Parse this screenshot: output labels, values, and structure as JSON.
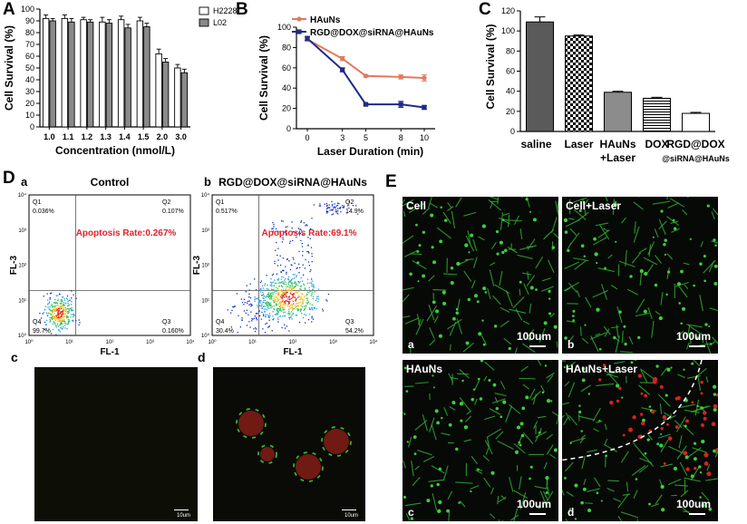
{
  "panel_letters": {
    "A": "A",
    "B": "B",
    "C": "C",
    "D": "D",
    "E": "E"
  },
  "colors": {
    "h2228": "#ffffff",
    "l02": "#8a8a8a",
    "hauns": "#e07a5f",
    "rgd": "#1f2a8a",
    "c_saline": "#5a5a5a",
    "c_laser": "checker",
    "c_hauns": "#8c8c8c",
    "c_dox": "hstripe",
    "c_rgd": "#ffffff",
    "apoptosis_text": "#e0232a",
    "micro_bg": "#070907"
  },
  "chart_data": [
    {
      "id": "A",
      "type": "bar",
      "categories": [
        "1.0",
        "1.1",
        "1.2",
        "1.3",
        "1.4",
        "1.5",
        "2.0",
        "3.0"
      ],
      "series": [
        {
          "name": "H2228",
          "values": [
            92,
            92,
            91,
            89,
            91,
            90,
            62,
            50
          ],
          "errors": [
            3,
            3,
            2,
            4,
            3,
            3,
            4,
            3
          ]
        },
        {
          "name": "L02",
          "values": [
            90,
            89,
            89,
            88,
            84,
            85,
            55,
            46
          ],
          "errors": [
            2,
            3,
            2,
            3,
            3,
            3,
            3,
            3
          ]
        }
      ],
      "xlabel": "Concentration (nmol/L)",
      "ylabel": "Cell Survival (%)",
      "ylim": [
        0,
        100
      ],
      "yticks": [
        0,
        10,
        20,
        30,
        40,
        50,
        60,
        70,
        80,
        90,
        100
      ],
      "legend": "top-right"
    },
    {
      "id": "B",
      "type": "line",
      "x": [
        0,
        3,
        5,
        8,
        10
      ],
      "series": [
        {
          "name": "HAuNs",
          "values": [
            88,
            69,
            52,
            51,
            50
          ],
          "errors": [
            2,
            2,
            1,
            2,
            3
          ]
        },
        {
          "name": "RGD@DOX@siRNA@HAuNs",
          "values": [
            89,
            58,
            24,
            24,
            21
          ],
          "errors": [
            2,
            2,
            1,
            3,
            2
          ]
        }
      ],
      "xlabel": "Laser Duration (min)",
      "ylabel": "Cell Survival (%)",
      "ylim": [
        0,
        100
      ],
      "yticks": [
        0,
        20,
        40,
        60,
        80,
        100
      ],
      "xticks": [
        "0",
        "3",
        "5",
        "8",
        "10"
      ],
      "legend": "top-right"
    },
    {
      "id": "C",
      "type": "bar",
      "categories": [
        "saline",
        "Laser",
        "HAuNs\n+Laser",
        "DOX",
        "RGD@DOX\n@siRNA@HAuNs"
      ],
      "values": [
        109,
        95,
        39,
        33,
        18
      ],
      "errors": [
        5,
        1,
        1,
        1,
        1
      ],
      "ylabel": "Cell Survival (%)",
      "ylim": [
        0,
        120
      ],
      "yticks": [
        0,
        20,
        40,
        60,
        80,
        100,
        120
      ]
    }
  ],
  "flow": {
    "control": {
      "sub": "a",
      "title": "Control",
      "apoptosis": "Apoptosis Rate:0.267%",
      "q1_label": "Q1",
      "q1": "0.036%",
      "q2_label": "Q2",
      "q2": "0.107%",
      "q3_label": "Q3",
      "q3": "0.160%",
      "q4_label": "Q4",
      "q4": "99.7%"
    },
    "treated": {
      "sub": "b",
      "title": "RGD@DOX@siRNA@HAuNs",
      "apoptosis": "Apoptosis Rate:69.1%",
      "q1_label": "Q1",
      "q1": "0.517%",
      "q2_label": "Q2",
      "q2": "14.9%",
      "q3_label": "Q3",
      "q3": "54.2%",
      "q4_label": "Q4",
      "q4": "30.4%"
    },
    "xlabel": "FL-1",
    "ylabel": "FL-3",
    "ticks": [
      "10⁰",
      "10¹",
      "10²",
      "10³",
      "10⁴"
    ]
  },
  "fluor": {
    "c": "c",
    "d": "d",
    "scale": "10um"
  },
  "micro": {
    "a": {
      "title": "Cell",
      "letter": "a",
      "scale": "100um"
    },
    "b": {
      "title": "Cell+Laser",
      "letter": "b",
      "scale": "100um"
    },
    "c": {
      "title": "HAuNs",
      "letter": "c",
      "scale": "100um"
    },
    "d": {
      "title": "HAuNs+Laser",
      "letter": "d",
      "scale": "100um"
    }
  }
}
